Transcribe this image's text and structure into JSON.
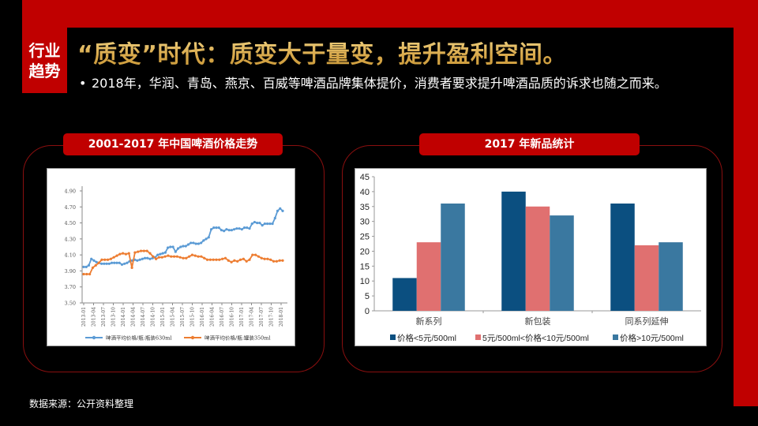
{
  "header": {
    "tag_line1": "行业",
    "tag_line2": "趋势",
    "title": "“质变”时代：质变大于量变，提升盈利空间。",
    "bullet": "•",
    "subtitle": "2018年，华润、青岛、燕京、百威等啤酒品牌集体提价，消费者要求提升啤酒品质的诉求也随之而来。"
  },
  "left_panel": {
    "title": "2001-2017 年中国啤酒价格走势"
  },
  "right_panel": {
    "title": "2017 年新品统计"
  },
  "footer": {
    "source": "数据来源：公开资料整理"
  },
  "colors": {
    "brand_red": "#c00000",
    "title_gold": "#e6c06a",
    "line_blue": "#5b9bd5",
    "line_orange": "#ed7d31",
    "bar_navy": "#0b4f80",
    "bar_pink": "#e07070",
    "bar_steel": "#3a78a0"
  },
  "chart_data": [
    {
      "type": "line",
      "title": "2001-2017 年中国啤酒价格走势",
      "xlabel": "",
      "ylabel": "",
      "ylim": [
        3.5,
        4.9
      ],
      "yticks": [
        "3.50",
        "3.70",
        "3.90",
        "4.10",
        "4.30",
        "4.50",
        "4.70",
        "4.90"
      ],
      "x_tick_labels": [
        "2013-01",
        "2013-04",
        "2013-07",
        "2013-10",
        "2014-01",
        "2014-04",
        "2014-07",
        "2014-10",
        "2015-01",
        "2015-04",
        "2015-07",
        "2015-10",
        "2016-01",
        "2016-04",
        "2016-07",
        "2016-10",
        "2017-01",
        "2017-04",
        "2017-07",
        "2017-10",
        "2018-01"
      ],
      "grid": false,
      "legend_position": "bottom",
      "series": [
        {
          "name": "啤酒平均价格/瓶:瓶装630ml",
          "color": "#5b9bd5",
          "values": [
            3.95,
            3.95,
            3.97,
            4.05,
            4.03,
            4.01,
            4.0,
            3.99,
            3.99,
            3.99,
            3.99,
            4.0,
            4.0,
            4.0,
            4.0,
            3.98,
            3.99,
            4.0,
            4.02,
            4.03,
            4.04,
            4.03,
            4.04,
            4.05,
            4.06,
            4.06,
            4.05,
            4.06,
            4.07,
            4.1,
            4.11,
            4.12,
            4.13,
            4.19,
            4.2,
            4.2,
            4.14,
            4.18,
            4.2,
            4.21,
            4.21,
            4.23,
            4.25,
            4.25,
            4.24,
            4.24,
            4.25,
            4.28,
            4.3,
            4.32,
            4.42,
            4.44,
            4.44,
            4.44,
            4.41,
            4.4,
            4.42,
            4.41,
            4.41,
            4.42,
            4.43,
            4.43,
            4.42,
            4.44,
            4.44,
            4.43,
            4.49,
            4.51,
            4.5,
            4.5,
            4.47,
            4.49,
            4.49,
            4.49,
            4.49,
            4.56,
            4.65,
            4.68,
            4.65
          ]
        },
        {
          "name": "啤酒平均价格/瓶:罐装350ml",
          "color": "#ed7d31",
          "values": [
            3.86,
            3.86,
            3.86,
            3.94,
            3.97,
            4.0,
            4.04,
            4.04,
            4.04,
            4.05,
            4.07,
            4.09,
            4.11,
            4.12,
            4.11,
            4.12,
            3.94,
            4.13,
            4.14,
            4.15,
            4.15,
            4.15,
            4.12,
            4.08,
            4.05,
            4.07,
            4.07,
            4.08,
            4.09,
            4.08,
            4.08,
            4.08,
            4.07,
            4.06,
            4.06,
            4.08,
            4.1,
            4.09,
            4.08,
            4.08,
            4.06,
            4.04,
            4.04,
            4.04,
            4.04,
            4.04,
            4.05,
            4.06,
            4.03,
            4.01,
            4.03,
            4.02,
            4.04,
            4.05,
            4.02,
            4.04,
            4.1,
            4.1,
            4.08,
            4.06,
            4.05,
            4.05,
            4.04,
            4.02,
            4.02,
            4.03,
            4.03
          ]
        }
      ]
    },
    {
      "type": "bar",
      "title": "2017 年新品统计",
      "categories": [
        "新系列",
        "新包装",
        "同系列延伸"
      ],
      "ylim": [
        0,
        45
      ],
      "yticks": [
        0,
        5,
        10,
        15,
        20,
        25,
        30,
        35,
        40,
        45
      ],
      "grid": false,
      "legend_position": "bottom",
      "series": [
        {
          "name": "价格<5元/500ml",
          "color": "#0b4f80",
          "values": [
            11,
            40,
            36
          ]
        },
        {
          "name": "5元/500ml<价格<10元/500ml",
          "color": "#e07070",
          "values": [
            23,
            35,
            22
          ]
        },
        {
          "name": "价格>10元/500ml",
          "color": "#3a78a0",
          "values": [
            36,
            32,
            23
          ]
        }
      ]
    }
  ]
}
